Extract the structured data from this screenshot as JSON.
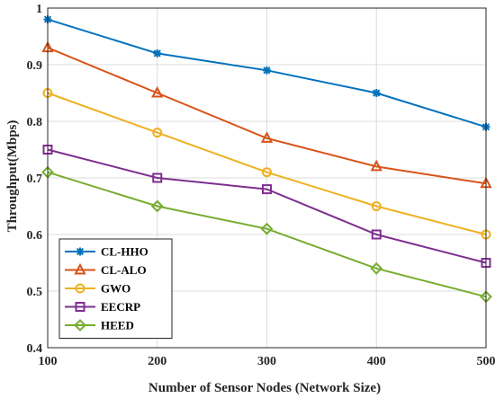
{
  "chart_data": {
    "type": "line",
    "xlabel": "Number of Sensor Nodes (Network Size)",
    "ylabel": "Throughput(Mbps)",
    "x": [
      100,
      200,
      300,
      400,
      500
    ],
    "xticks": [
      "100",
      "200",
      "300",
      "400",
      "500"
    ],
    "yticks": [
      "0.4",
      "0.5",
      "0.6",
      "0.7",
      "0.8",
      "0.9",
      "1"
    ],
    "xlim": [
      100,
      500
    ],
    "ylim": [
      0.4,
      1.0
    ],
    "grid": true,
    "legend_position": "bottom-left",
    "series": [
      {
        "name": "CL-HHO",
        "color": "#0072BD",
        "marker": "star",
        "values": [
          0.98,
          0.92,
          0.89,
          0.85,
          0.79
        ]
      },
      {
        "name": "CL-ALO",
        "color": "#D95319",
        "marker": "triangle",
        "values": [
          0.93,
          0.85,
          0.77,
          0.72,
          0.69
        ]
      },
      {
        "name": "GWO",
        "color": "#EDB120",
        "marker": "circle",
        "values": [
          0.85,
          0.78,
          0.71,
          0.65,
          0.6
        ]
      },
      {
        "name": "EECRP",
        "color": "#7E2F8E",
        "marker": "square",
        "values": [
          0.75,
          0.7,
          0.68,
          0.6,
          0.55
        ]
      },
      {
        "name": "HEED",
        "color": "#77AC30",
        "marker": "diamond",
        "values": [
          0.71,
          0.65,
          0.61,
          0.54,
          0.49
        ]
      }
    ]
  }
}
